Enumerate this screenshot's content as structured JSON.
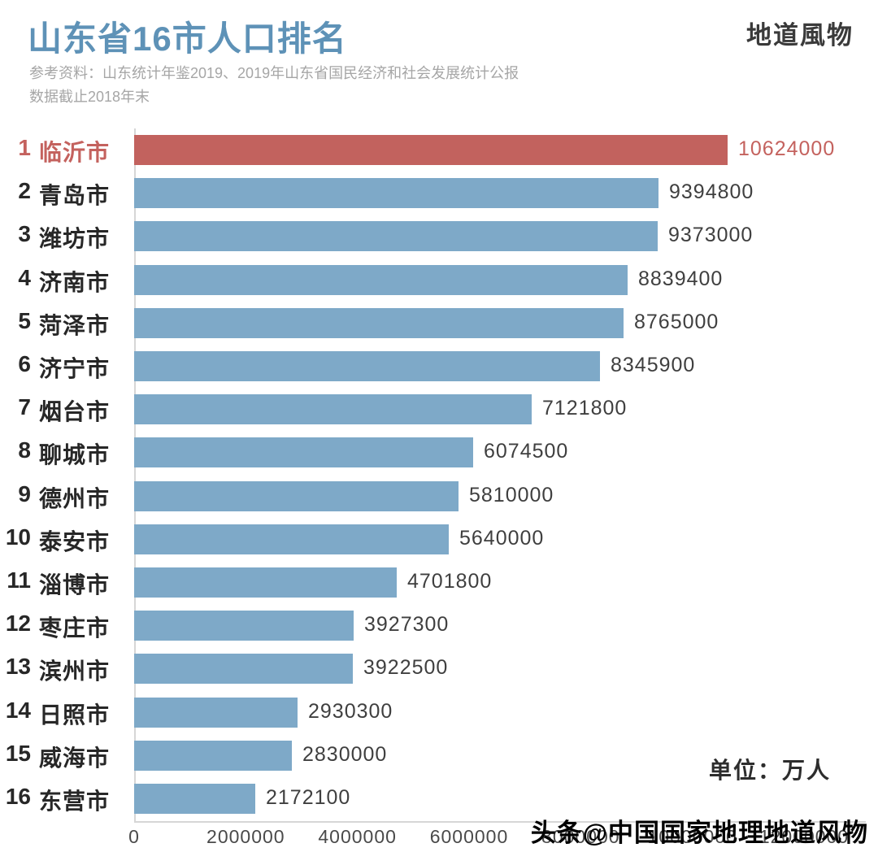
{
  "header": {
    "title": "山东省16市人口排名",
    "logo": "地道風物",
    "subtitle_line1": "参考资料：山东统计年鉴2019、2019年山东省国民经济和社会发展统计公报",
    "subtitle_line2": "数据截止2018年末"
  },
  "chart_data": {
    "type": "bar",
    "orientation": "horizontal",
    "title": "山东省16市人口排名",
    "ranks": [
      "1",
      "2",
      "3",
      "4",
      "5",
      "6",
      "7",
      "8",
      "9",
      "10",
      "11",
      "12",
      "13",
      "14",
      "15",
      "16"
    ],
    "categories": [
      "临沂市",
      "青岛市",
      "潍坊市",
      "济南市",
      "菏泽市",
      "济宁市",
      "烟台市",
      "聊城市",
      "德州市",
      "泰安市",
      "淄博市",
      "枣庄市",
      "滨州市",
      "日照市",
      "威海市",
      "东营市"
    ],
    "values": [
      10624000,
      9394800,
      9373000,
      8839400,
      8765000,
      8345900,
      7121800,
      6074500,
      5810000,
      5640000,
      4701800,
      3927300,
      3922500,
      2930300,
      2830000,
      2172100
    ],
    "value_labels": [
      "10624000",
      "9394800",
      "9373000",
      "8839400",
      "8765000",
      "8345900",
      "7121800",
      "6074500",
      "5810000",
      "5640000",
      "4701800",
      "3927300",
      "3922500",
      "2930300",
      "2830000",
      "2172100"
    ],
    "xlim": [
      0,
      12000000
    ],
    "xticks": [
      0,
      2000000,
      4000000,
      6000000,
      8000000,
      10000000,
      12000000
    ],
    "xtick_labels": [
      "0",
      "2000000",
      "4000000",
      "6000000",
      "8000000",
      "10000000",
      "12000000"
    ],
    "highlight_index": 0,
    "grid": false,
    "legend": "none",
    "colors": {
      "bar": "#7ea9c8",
      "highlight_bar": "#c2625e",
      "highlight_text": "#c4625e",
      "title": "#5e92b7",
      "label": "#272727",
      "value": "#3f3f3f",
      "axis": "#d6d6d6",
      "tick": "#4a4a4a"
    }
  },
  "footer": {
    "unit_label": "单位：万人",
    "watermark": "头条@中国国家地理地道风物"
  }
}
